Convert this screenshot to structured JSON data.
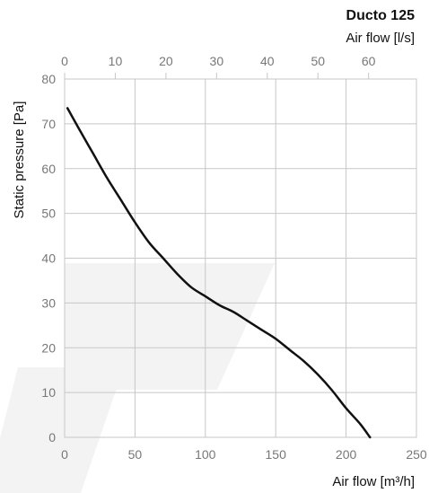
{
  "chart_data": {
    "type": "line",
    "title": "Ducto 125",
    "xlabel": "Air flow [m³/h]",
    "x2label": "Air flow [l/s]",
    "ylabel": "Static pressure [Pa]",
    "xlim": [
      0,
      250
    ],
    "x2lim": [
      0,
      69.444
    ],
    "ylim": [
      0,
      80
    ],
    "xticks": [
      "0",
      "50",
      "100",
      "150",
      "200",
      "250"
    ],
    "x2ticks": [
      "0",
      "10",
      "20",
      "30",
      "40",
      "50",
      "60"
    ],
    "yticks": [
      "0",
      "10",
      "20",
      "30",
      "40",
      "50",
      "60",
      "70",
      "80"
    ],
    "grid": true,
    "series": [
      {
        "x": [
          2,
          10,
          20,
          30,
          40,
          50,
          60,
          70,
          80,
          90,
          100,
          110,
          120,
          130,
          140,
          150,
          160,
          170,
          180,
          190,
          200,
          210,
          217
        ],
        "y": [
          73.5,
          69,
          63.5,
          58,
          53,
          48,
          43.5,
          40,
          36.5,
          33.5,
          31.5,
          29.5,
          28,
          26,
          24,
          22,
          19.5,
          17,
          14,
          10.5,
          6.5,
          3,
          0
        ]
      }
    ]
  },
  "colors": {
    "curve": "#111111",
    "grid": "#c7c7c7",
    "tick_text": "#777777",
    "watermark": "#f3f3f3"
  }
}
